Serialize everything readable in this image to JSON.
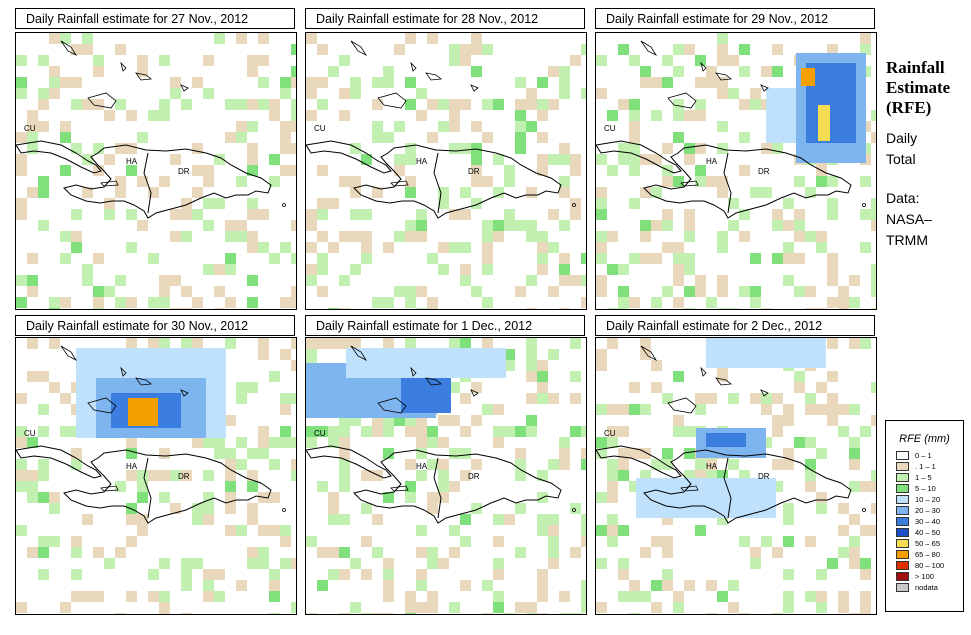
{
  "panels": [
    {
      "title": "Daily Rainfall estimate for  27 Nov., 2012",
      "seed": 11,
      "extra": []
    },
    {
      "title": "Daily Rainfall estimate for  28 Nov., 2012",
      "seed": 23,
      "extra": []
    },
    {
      "title": "Daily Rainfall estimate for  29 Nov., 2012",
      "seed": 37,
      "extra": [
        {
          "x": 200,
          "y": 20,
          "w": 70,
          "h": 110,
          "c": "#7fb5ee"
        },
        {
          "x": 210,
          "y": 30,
          "w": 50,
          "h": 80,
          "c": "#3b7ee0"
        },
        {
          "x": 205,
          "y": 35,
          "w": 14,
          "h": 18,
          "c": "#f5a000"
        },
        {
          "x": 222,
          "y": 72,
          "w": 12,
          "h": 36,
          "c": "#f5dc50"
        },
        {
          "x": 170,
          "y": 55,
          "w": 30,
          "h": 55,
          "c": "#bfe1fb"
        }
      ]
    },
    {
      "title": "Daily Rainfall estimate for  30 Nov., 2012",
      "seed": 53,
      "extra": [
        {
          "x": 60,
          "y": 10,
          "w": 150,
          "h": 90,
          "c": "#bfe1fb"
        },
        {
          "x": 80,
          "y": 40,
          "w": 110,
          "h": 60,
          "c": "#7fb5ee"
        },
        {
          "x": 95,
          "y": 55,
          "w": 70,
          "h": 35,
          "c": "#3b7ee0"
        },
        {
          "x": 112,
          "y": 60,
          "w": 30,
          "h": 28,
          "c": "#f5a000"
        }
      ]
    },
    {
      "title": "Daily Rainfall estimate for  1 Dec., 2012",
      "seed": 71,
      "extra": [
        {
          "x": 0,
          "y": 25,
          "w": 130,
          "h": 55,
          "c": "#7fb5ee"
        },
        {
          "x": 95,
          "y": 20,
          "w": 50,
          "h": 55,
          "c": "#3b7ee0"
        },
        {
          "x": 40,
          "y": 10,
          "w": 160,
          "h": 30,
          "c": "#bfe1fb"
        }
      ]
    },
    {
      "title": "Daily Rainfall estimate for  2 Dec., 2012",
      "seed": 89,
      "extra": [
        {
          "x": 110,
          "y": 0,
          "w": 120,
          "h": 30,
          "c": "#bfe1fb"
        },
        {
          "x": 100,
          "y": 90,
          "w": 70,
          "h": 30,
          "c": "#7fb5ee"
        },
        {
          "x": 110,
          "y": 95,
          "w": 40,
          "h": 14,
          "c": "#3b7ee0"
        },
        {
          "x": 40,
          "y": 140,
          "w": 140,
          "h": 40,
          "c": "#bfe1fb"
        }
      ]
    }
  ],
  "map_labels": {
    "cuba": "CU",
    "haiti": "HA",
    "dominican_republic": "DR"
  },
  "side": {
    "title_lines": [
      "Rainfall",
      "Estimate",
      "(RFE)"
    ],
    "sub1": [
      "Daily",
      "Total"
    ],
    "sub2": [
      "Data:",
      "NASA–",
      "TRMM"
    ]
  },
  "legend": {
    "title": "RFE (mm)",
    "items": [
      {
        "label": "0 – 1",
        "color": "#ffffff"
      },
      {
        "label": ". 1 – 1",
        "color": "#ead8bc"
      },
      {
        "label": "1 – 5",
        "color": "#c2f0b0"
      },
      {
        "label": "5 – 10",
        "color": "#7fe07c"
      },
      {
        "label": "10 – 20",
        "color": "#bfe1fb"
      },
      {
        "label": "20 – 30",
        "color": "#7fb5ee"
      },
      {
        "label": "30 – 40",
        "color": "#3b7ee0"
      },
      {
        "label": "40 – 50",
        "color": "#1c4fc8"
      },
      {
        "label": "50 – 65",
        "color": "#f5dc50"
      },
      {
        "label": "65 – 80",
        "color": "#f5a000"
      },
      {
        "label": "80 – 100",
        "color": "#e03000"
      },
      {
        "label": "> 100",
        "color": "#a01010"
      },
      {
        "label": "nodata",
        "color": "#c8c8c8"
      }
    ]
  }
}
